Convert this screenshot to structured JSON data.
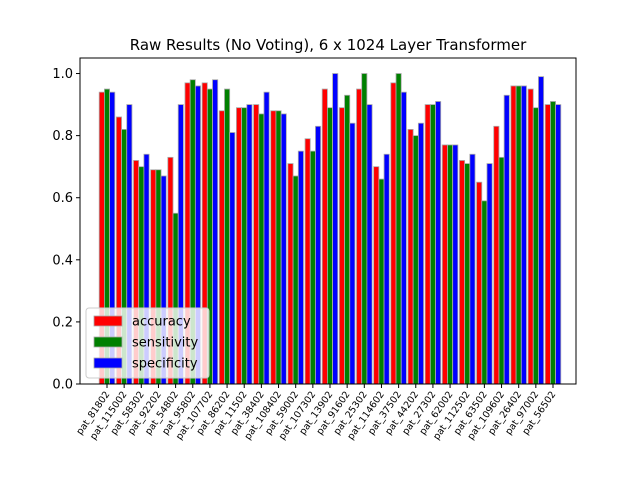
{
  "chart_data": {
    "type": "bar",
    "title": "Raw Results (No Voting), 6 x 1024 Layer Transformer",
    "xlabel": "",
    "ylabel": "",
    "ylim": [
      0,
      1.05
    ],
    "yticks": [
      0.0,
      0.2,
      0.4,
      0.6,
      0.8,
      1.0
    ],
    "ytick_labels": [
      "0.0",
      "0.2",
      "0.4",
      "0.6",
      "0.8",
      "1.0"
    ],
    "grid": false,
    "legend_position": "lower-left",
    "categories": [
      "pat_81802",
      "pat_115002",
      "pat_58302",
      "pat_92202",
      "pat_54802",
      "pat_95802",
      "pat_107702",
      "pat_86202",
      "pat_11502",
      "pat_38402",
      "pat_108402",
      "pat_59002",
      "pat_107302",
      "pat_13902",
      "pat_91602",
      "pat_25302",
      "pat_114602",
      "pat_37502",
      "pat_44202",
      "pat_27302",
      "pat_62002",
      "pat_112502",
      "pat_63502",
      "pat_109602",
      "pat_26402",
      "pat_97002",
      "pat_56502"
    ],
    "series": [
      {
        "name": "accuracy",
        "color": "#ff0000",
        "values": [
          0.94,
          0.86,
          0.72,
          0.69,
          0.73,
          0.97,
          0.97,
          0.88,
          0.89,
          0.9,
          0.88,
          0.71,
          0.79,
          0.95,
          0.89,
          0.95,
          0.7,
          0.97,
          0.82,
          0.9,
          0.77,
          0.72,
          0.65,
          0.83,
          0.96,
          0.95,
          0.9
        ]
      },
      {
        "name": "sensitivity",
        "color": "#008000",
        "values": [
          0.95,
          0.82,
          0.7,
          0.69,
          0.55,
          0.98,
          0.95,
          0.95,
          0.89,
          0.87,
          0.88,
          0.67,
          0.75,
          0.89,
          0.93,
          1.0,
          0.66,
          1.0,
          0.8,
          0.9,
          0.77,
          0.71,
          0.59,
          0.73,
          0.96,
          0.89,
          0.91
        ]
      },
      {
        "name": "specificity",
        "color": "#0000ff",
        "values": [
          0.94,
          0.9,
          0.74,
          0.67,
          0.9,
          0.96,
          0.98,
          0.81,
          0.9,
          0.94,
          0.87,
          0.75,
          0.83,
          1.0,
          0.84,
          0.9,
          0.74,
          0.94,
          0.84,
          0.91,
          0.77,
          0.74,
          0.71,
          0.93,
          0.96,
          0.99,
          0.9
        ]
      }
    ]
  }
}
